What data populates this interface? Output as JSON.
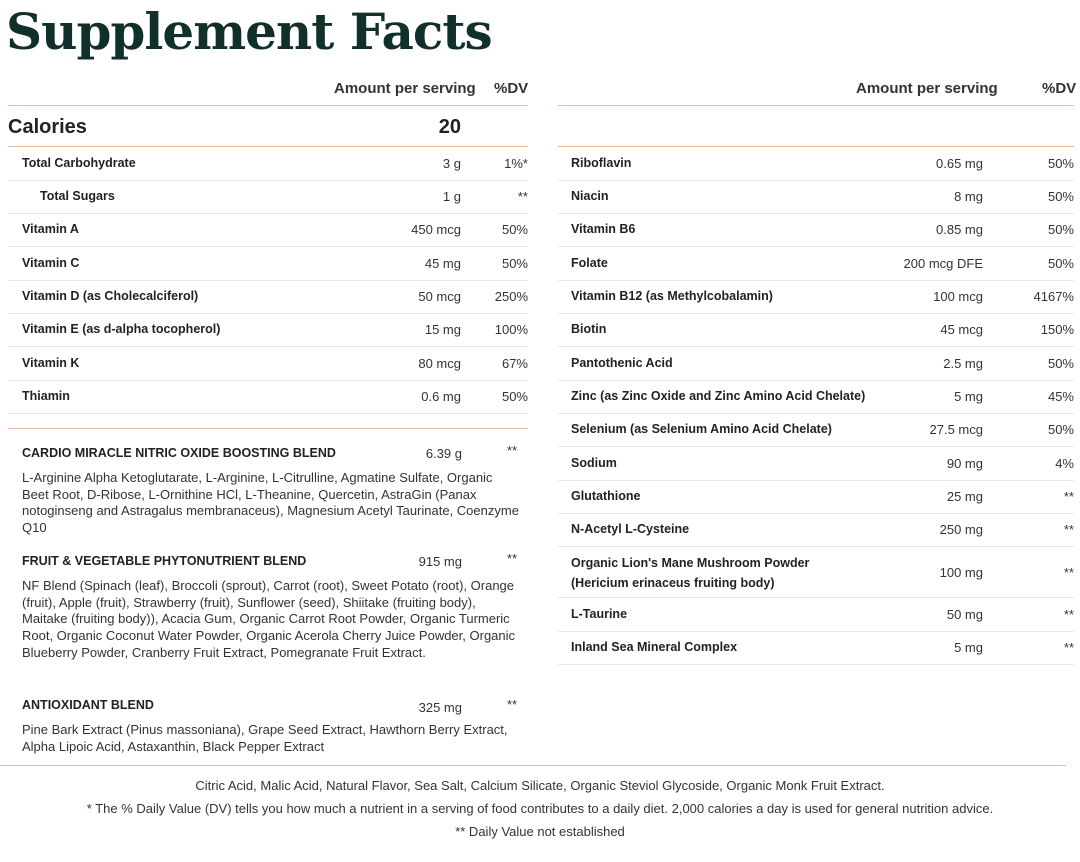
{
  "title": "Supplement Facts",
  "headers": {
    "amount": "Amount per serving",
    "dv": "%DV"
  },
  "calories": {
    "label": "Calories",
    "value": "20"
  },
  "left_rows": [
    {
      "name": "Total Carbohydrate",
      "amount": "3 g",
      "dv": "1%*"
    },
    {
      "name": "Total Sugars",
      "amount": "1 g",
      "dv": "**",
      "indent": true
    },
    {
      "name": "Vitamin A",
      "amount": "450 mcg",
      "dv": "50%"
    },
    {
      "name": "Vitamin C",
      "amount": "45 mg",
      "dv": "50%"
    },
    {
      "name": "Vitamin D (as Cholecalciferol)",
      "amount": "50 mcg",
      "dv": "250%"
    },
    {
      "name": "Vitamin E (as d-alpha tocopherol)",
      "amount": "15 mg",
      "dv": "100%"
    },
    {
      "name": "Vitamin K",
      "amount": "80 mcg",
      "dv": "67%"
    },
    {
      "name": "Thiamin",
      "amount": "0.6 mg",
      "dv": "50%"
    }
  ],
  "right_rows": [
    {
      "name": "Riboflavin",
      "amount": "0.65 mg",
      "dv": "50%"
    },
    {
      "name": "Niacin",
      "amount": "8 mg",
      "dv": "50%"
    },
    {
      "name": "Vitamin B6",
      "amount": "0.85 mg",
      "dv": "50%"
    },
    {
      "name": "Folate",
      "amount": "200 mcg DFE",
      "dv": "50%"
    },
    {
      "name": "Vitamin B12 (as Methylcobalamin)",
      "amount": "100 mcg",
      "dv": "4167%"
    },
    {
      "name": "Biotin",
      "amount": "45 mcg",
      "dv": "150%"
    },
    {
      "name": "Pantothenic Acid",
      "amount": "2.5 mg",
      "dv": "50%"
    },
    {
      "name": "Zinc (as Zinc Oxide and Zinc Amino Acid Chelate)",
      "amount": "5 mg",
      "dv": "45%"
    },
    {
      "name": "Selenium (as Selenium Amino Acid Chelate)",
      "amount": "27.5 mcg",
      "dv": "50%"
    },
    {
      "name": "Sodium",
      "amount": "90 mg",
      "dv": "4%"
    },
    {
      "name": "Glutathione",
      "amount": "25 mg",
      "dv": "**"
    },
    {
      "name": "N-Acetyl L-Cysteine",
      "amount": "250 mg",
      "dv": "**"
    },
    {
      "name": "Organic Lion's Mane Mushroom Powder (Hericium erinaceus fruiting body)",
      "amount": "100 mg",
      "dv": "**",
      "tall": true
    },
    {
      "name": "L-Taurine",
      "amount": "50 mg",
      "dv": "**"
    },
    {
      "name": "Inland Sea Mineral Complex",
      "amount": "5 mg",
      "dv": "**"
    }
  ],
  "blends": [
    {
      "name": "CARDIO MIRACLE NITRIC OXIDE BOOSTING BLEND",
      "amount": "6.39 g",
      "dv": "**",
      "ingredients": "L-Arginine Alpha Ketoglutarate, L-Arginine, L-Citrulline, Agmatine Sulfate, Organic Beet Root, D-Ribose, L-Ornithine HCl, L-Theanine, Quercetin, AstraGin (Panax notoginseng and Astragalus membranaceus), Magnesium Acetyl Taurinate, Coenzyme Q10"
    },
    {
      "name": "FRUIT & VEGETABLE PHYTONUTRIENT BLEND",
      "amount": "915 mg",
      "dv": "**",
      "ingredients": "NF Blend (Spinach (leaf), Broccoli (sprout), Carrot (root), Sweet Potato (root), Orange (fruit), Apple (fruit), Strawberry (fruit), Sunflower (seed), Shiitake (fruiting body), Maitake (fruiting body)), Acacia Gum, Organic Carrot Root Powder, Organic Turmeric Root, Organic Coconut Water Powder, Organic Acerola Cherry Juice Powder, Organic Blueberry Powder, Cranberry Fruit Extract, Pomegranate Fruit Extract."
    },
    {
      "name": "ANTIOXIDANT BLEND",
      "amount": "325 mg",
      "dv": "**",
      "ingredients": "Pine Bark Extract (Pinus massoniana), Grape Seed Extract, Hawthorn Berry Extract, Alpha Lipoic Acid, Astaxanthin, Black Pepper Extract"
    }
  ],
  "footer": {
    "other_ingredients": "Citric Acid, Malic Acid, Natural Flavor, Sea Salt, Calcium Silicate, Organic Steviol Glycoside, Organic Monk Fruit Extract.",
    "dv_note": "* The % Daily Value (DV) tells you how much a nutrient in a serving of food contributes to a daily diet. 2,000 calories a day is used for general nutrition advice.",
    "not_established": "**  Daily Value not established"
  }
}
